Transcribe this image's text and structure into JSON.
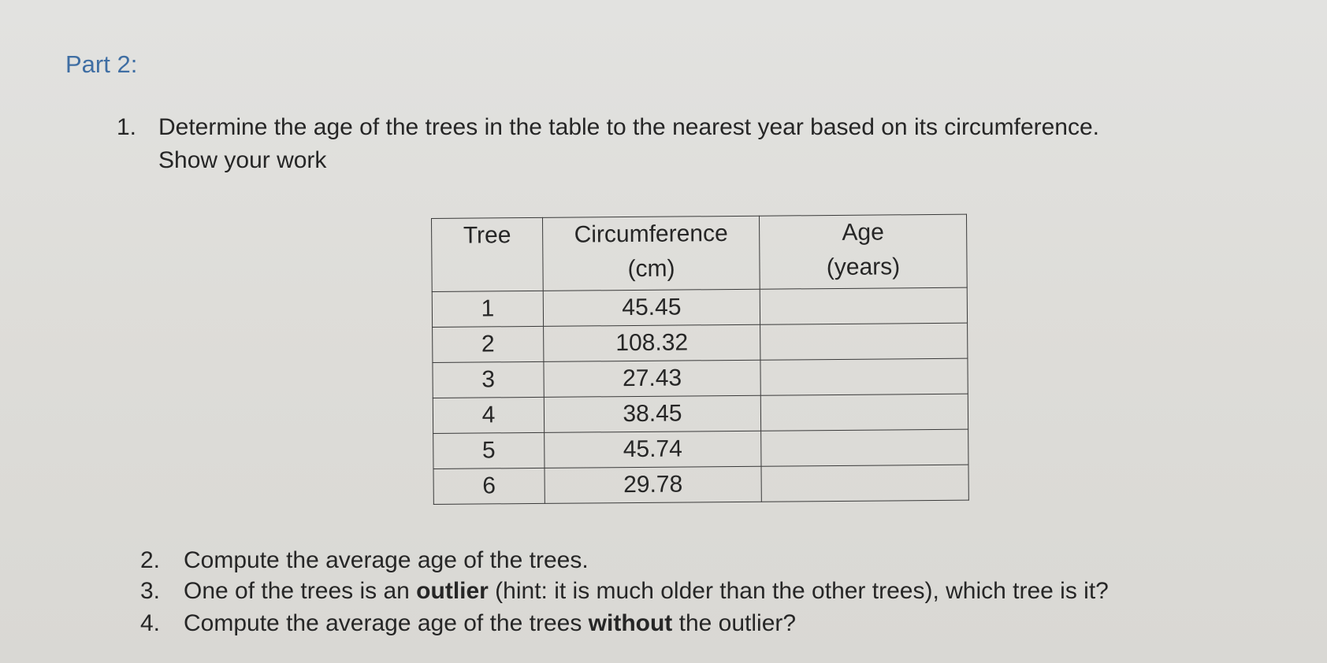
{
  "heading": "Part 2:",
  "questions": {
    "q1": {
      "num": "1.",
      "line1": "Determine the age of the trees in the table to the nearest year based on its circumference.",
      "line2": "Show your work"
    },
    "q2": {
      "num": "2.",
      "text": "Compute the average age of the trees."
    },
    "q3": {
      "num": "3.",
      "pre": "One of the trees is an ",
      "bold": "outlier",
      "post": " (hint: it is much older than the other trees), which tree is it?"
    },
    "q4": {
      "num": "4.",
      "pre": "Compute the average age of the trees ",
      "bold": "without",
      "post": " the outlier?"
    }
  },
  "table": {
    "headers": {
      "tree": "Tree",
      "circ_line1": "Circumference",
      "circ_line2": "(cm)",
      "age_line1": "Age",
      "age_line2": "(years)"
    },
    "rows": [
      {
        "tree": "1",
        "circumference": "45.45",
        "age": ""
      },
      {
        "tree": "2",
        "circumference": "108.32",
        "age": ""
      },
      {
        "tree": "3",
        "circumference": "27.43",
        "age": ""
      },
      {
        "tree": "4",
        "circumference": "38.45",
        "age": ""
      },
      {
        "tree": "5",
        "circumference": "45.74",
        "age": ""
      },
      {
        "tree": "6",
        "circumference": "29.78",
        "age": ""
      }
    ]
  }
}
